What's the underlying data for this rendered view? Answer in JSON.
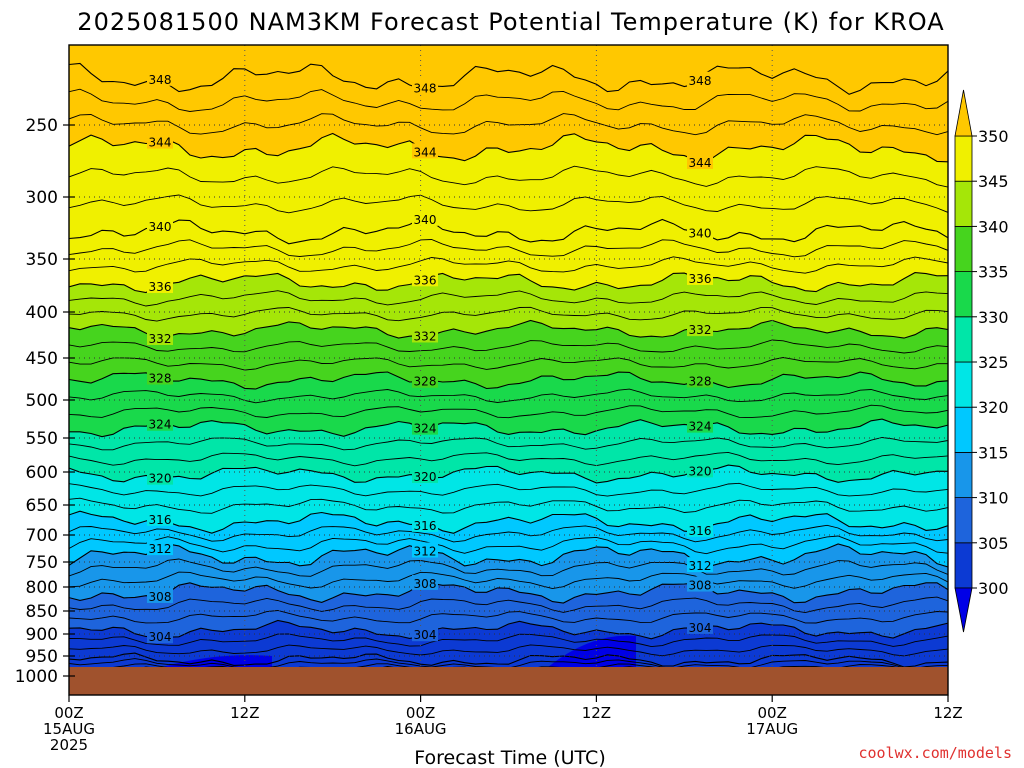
{
  "chart_data": {
    "type": "contour",
    "title": "2025081500 NAM3KM Forecast Potential Temperature (K) for KROA",
    "xlabel": "Forecast Time (UTC)",
    "credit": "coolwx.com/models",
    "x_ticks": [
      {
        "hour": 0,
        "lines": [
          "00Z",
          "15AUG",
          "2025"
        ]
      },
      {
        "hour": 12,
        "lines": [
          "12Z"
        ]
      },
      {
        "hour": 24,
        "lines": [
          "00Z",
          "16AUG"
        ]
      },
      {
        "hour": 36,
        "lines": [
          "12Z"
        ]
      },
      {
        "hour": 48,
        "lines": [
          "00Z",
          "17AUG"
        ]
      },
      {
        "hour": 60,
        "lines": [
          "12Z"
        ]
      }
    ],
    "y_ticks": [
      "250",
      "300",
      "350",
      "400",
      "450",
      "500",
      "550",
      "600",
      "650",
      "700",
      "750",
      "800",
      "850",
      "900",
      "950",
      "1000"
    ],
    "colorbar": {
      "labels": [
        "300",
        "305",
        "310",
        "315",
        "320",
        "325",
        "330",
        "335",
        "340",
        "345",
        "350"
      ],
      "colors": [
        "#0000e6",
        "#0c3ad3",
        "#1e64dc",
        "#1896ea",
        "#00c8ff",
        "#00e6e6",
        "#00e6a8",
        "#19d94b",
        "#46d41e",
        "#a5e608",
        "#f0f000",
        "#ffc800"
      ]
    },
    "contour_labels": [
      "348",
      "344",
      "340",
      "336",
      "332",
      "328",
      "324",
      "320",
      "316",
      "312",
      "308",
      "304"
    ]
  }
}
